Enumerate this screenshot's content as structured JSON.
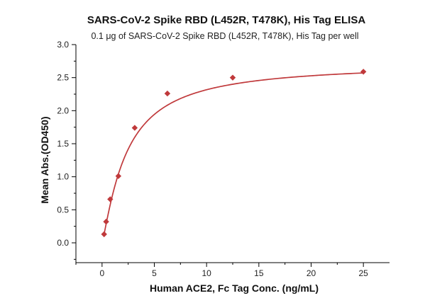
{
  "chart_data": {
    "type": "scatter",
    "title": "SARS-CoV-2 Spike RBD (L452R, T478K), His Tag ELISA",
    "subtitle": "0.1 μg of SARS-CoV-2 Spike RBD (L452R, T478K), His Tag per well",
    "xlabel": "Human ACE2, Fc Tag Conc. (ng/mL)",
    "ylabel": "Mean Abs.(OD450)",
    "xlim": [
      -2.5,
      27.5
    ],
    "ylim": [
      -0.3,
      3.0
    ],
    "x_ticks": [
      0,
      5,
      10,
      15,
      20,
      25
    ],
    "x_tick_labels": [
      "0",
      "5",
      "10",
      "15",
      "20",
      "25"
    ],
    "y_ticks": [
      0.0,
      0.5,
      1.0,
      1.5,
      2.0,
      2.5,
      3.0
    ],
    "y_tick_labels": [
      "0.0",
      "0.5",
      "1.0",
      "1.5",
      "2.0",
      "2.5",
      "3.0"
    ],
    "grid": false,
    "legend": "none",
    "marker": "diamond",
    "color": "#c0393b",
    "series": [
      {
        "x": [
          0.195,
          0.391,
          0.781,
          1.563,
          3.125,
          6.25,
          12.5,
          25
        ],
        "y": [
          0.13,
          0.32,
          0.66,
          1.01,
          1.74,
          2.26,
          2.5,
          2.59
        ]
      }
    ],
    "fit": {
      "type": "4PL",
      "bottom": 0.0,
      "top": 2.72,
      "ec50": 2.33,
      "hill": 1.2
    }
  }
}
